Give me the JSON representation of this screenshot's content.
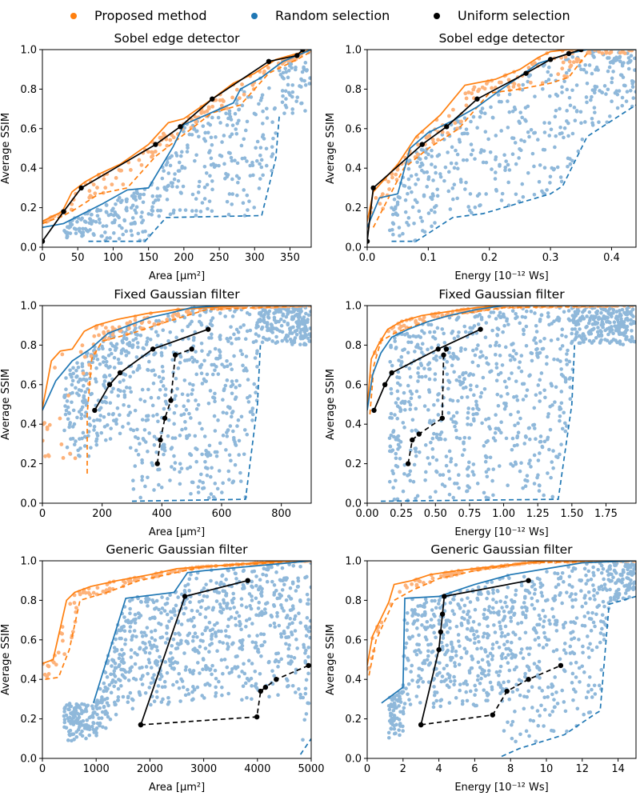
{
  "legend": {
    "items": [
      {
        "label": "Proposed method",
        "color": "#ff7f0e"
      },
      {
        "label": "Random selection",
        "color": "#1f77b4"
      },
      {
        "label": "Uniform selection",
        "color": "#000000"
      }
    ]
  },
  "colors": {
    "proposed": "#ff7f0e",
    "proposed_light": "#fdb27a",
    "random": "#1f77b4",
    "random_light": "#8fb8da",
    "uniform": "#000000"
  },
  "chart_data": [
    {
      "type": "scatter",
      "title": "Sobel edge detector",
      "xlabel": "Area [μm²]",
      "ylabel": "Average SSIM",
      "xlim": [
        0,
        380
      ],
      "ylim": [
        0,
        1.0
      ],
      "xticks": [
        0,
        50,
        100,
        150,
        200,
        250,
        300,
        350
      ],
      "yticks": [
        0.0,
        0.2,
        0.4,
        0.6,
        0.8,
        1.0
      ],
      "series": [
        {
          "name": "Proposed method",
          "role": "front",
          "x": [
            0,
            5,
            28,
            42,
            60,
            80,
            110,
            150,
            178,
            200,
            220,
            240,
            270,
            300,
            330,
            360,
            380
          ],
          "y": [
            0.13,
            0.14,
            0.18,
            0.28,
            0.33,
            0.37,
            0.42,
            0.52,
            0.63,
            0.65,
            0.7,
            0.75,
            0.83,
            0.88,
            0.95,
            0.98,
            1.0
          ]
        },
        {
          "name": "Proposed method",
          "role": "back",
          "x": [
            0,
            30,
            50,
            80,
            120,
            160,
            200,
            240,
            280,
            320,
            360,
            380
          ],
          "y": [
            0.12,
            0.16,
            0.2,
            0.27,
            0.3,
            0.46,
            0.57,
            0.68,
            0.72,
            0.88,
            0.95,
            0.99
          ]
        },
        {
          "name": "Random selection",
          "role": "front",
          "x": [
            0,
            30,
            85,
            120,
            150,
            185,
            200,
            270,
            280,
            310,
            340,
            380
          ],
          "y": [
            0.1,
            0.12,
            0.22,
            0.29,
            0.3,
            0.51,
            0.62,
            0.73,
            0.8,
            0.86,
            0.94,
            1.0
          ]
        },
        {
          "name": "Random selection",
          "role": "back",
          "x": [
            65,
            145,
            175,
            310,
            330,
            335
          ],
          "y": [
            0.03,
            0.03,
            0.15,
            0.16,
            0.45,
            0.67
          ]
        },
        {
          "name": "Uniform selection",
          "role": "path",
          "x": [
            0,
            30,
            55,
            160,
            195,
            240,
            320,
            360,
            368
          ],
          "y": [
            0.03,
            0.18,
            0.3,
            0.52,
            0.61,
            0.75,
            0.94,
            0.97,
            1.0
          ]
        }
      ]
    },
    {
      "type": "scatter",
      "title": "Sobel edge detector",
      "xlabel": "Energy [10⁻¹² Ws]",
      "ylabel": "Average SSIM",
      "xlim": [
        0,
        0.44
      ],
      "ylim": [
        0,
        1.0
      ],
      "xticks": [
        0.0,
        0.1,
        0.2,
        0.3,
        0.4
      ],
      "yticks": [
        0.0,
        0.2,
        0.4,
        0.6,
        0.8,
        1.0
      ],
      "series": [
        {
          "name": "Proposed method",
          "role": "front",
          "x": [
            0,
            0.01,
            0.05,
            0.08,
            0.12,
            0.16,
            0.21,
            0.25,
            0.28,
            0.3,
            0.33,
            0.44
          ],
          "y": [
            0.13,
            0.28,
            0.42,
            0.56,
            0.67,
            0.82,
            0.85,
            0.9,
            0.96,
            0.99,
            1.0,
            1.0
          ]
        },
        {
          "name": "Proposed method",
          "role": "back",
          "x": [
            0.01,
            0.06,
            0.1,
            0.15,
            0.2,
            0.25,
            0.3,
            0.33,
            0.36
          ],
          "y": [
            0.1,
            0.4,
            0.5,
            0.6,
            0.78,
            0.8,
            0.83,
            0.86,
            0.98
          ]
        },
        {
          "name": "Random selection",
          "role": "front",
          "x": [
            0,
            0.02,
            0.05,
            0.07,
            0.1,
            0.14,
            0.18,
            0.22,
            0.28,
            0.33,
            0.36,
            0.44
          ],
          "y": [
            0.1,
            0.25,
            0.27,
            0.5,
            0.58,
            0.64,
            0.71,
            0.8,
            0.93,
            0.98,
            1.0,
            1.0
          ]
        },
        {
          "name": "Random selection",
          "role": "back",
          "x": [
            0.04,
            0.08,
            0.14,
            0.19,
            0.3,
            0.32,
            0.36,
            0.44
          ],
          "y": [
            0.03,
            0.03,
            0.15,
            0.17,
            0.27,
            0.31,
            0.56,
            0.72
          ]
        },
        {
          "name": "Uniform selection",
          "role": "path",
          "x": [
            0,
            0.01,
            0.09,
            0.13,
            0.18,
            0.26,
            0.3,
            0.33,
            0.35
          ],
          "y": [
            0.03,
            0.3,
            0.52,
            0.61,
            0.75,
            0.88,
            0.95,
            0.98,
            1.0
          ]
        }
      ]
    },
    {
      "type": "scatter",
      "title": "Fixed Gaussian filter",
      "xlabel": "Area [μm²]",
      "ylabel": "Average SSIM",
      "xlim": [
        0,
        900
      ],
      "ylim": [
        0,
        1.0
      ],
      "xticks": [
        0,
        200,
        400,
        600,
        800
      ],
      "yticks": [
        0.0,
        0.2,
        0.4,
        0.6,
        0.8,
        1.0
      ],
      "series": [
        {
          "name": "Proposed method",
          "role": "front",
          "x": [
            0,
            30,
            60,
            100,
            140,
            180,
            250,
            350,
            450,
            560,
            680,
            900
          ],
          "y": [
            0.48,
            0.72,
            0.77,
            0.78,
            0.87,
            0.9,
            0.93,
            0.96,
            0.98,
            0.99,
            1.0,
            1.0
          ]
        },
        {
          "name": "Proposed method",
          "role": "back",
          "x": [
            150,
            150,
            165,
            200,
            300,
            400,
            550,
            900
          ],
          "y": [
            0.15,
            0.45,
            0.73,
            0.82,
            0.86,
            0.91,
            0.98,
            1.0
          ]
        },
        {
          "name": "Random selection",
          "role": "front",
          "x": [
            0,
            45,
            100,
            160,
            220,
            290,
            360,
            420,
            500,
            600,
            900
          ],
          "y": [
            0.47,
            0.62,
            0.72,
            0.78,
            0.86,
            0.9,
            0.94,
            0.96,
            0.99,
            1.0,
            1.0
          ]
        },
        {
          "name": "Random selection",
          "role": "back",
          "x": [
            300,
            680,
            720,
            730
          ],
          "y": [
            0.01,
            0.02,
            0.5,
            0.8
          ]
        },
        {
          "name": "Uniform selection",
          "role": "path",
          "x": [
            175,
            225,
            260,
            370,
            555
          ],
          "y": [
            0.47,
            0.6,
            0.66,
            0.78,
            0.88
          ]
        },
        {
          "name": "Uniform selection",
          "role": "back-path",
          "x": [
            385,
            395,
            410,
            430,
            445,
            500
          ],
          "y": [
            0.2,
            0.32,
            0.43,
            0.52,
            0.75,
            0.78
          ]
        }
      ]
    },
    {
      "type": "scatter",
      "title": "Fixed Gaussian filter",
      "xlabel": "Energy [10⁻¹² Ws]",
      "ylabel": "Average SSIM",
      "xlim": [
        0,
        1.97
      ],
      "ylim": [
        0,
        1.0
      ],
      "xticks": [
        0.0,
        0.25,
        0.5,
        0.75,
        1.0,
        1.25,
        1.5,
        1.75
      ],
      "yticks": [
        0.0,
        0.2,
        0.4,
        0.6,
        0.8,
        1.0
      ],
      "series": [
        {
          "name": "Proposed method",
          "role": "front",
          "x": [
            0,
            0.03,
            0.08,
            0.15,
            0.25,
            0.4,
            0.6,
            0.8,
            1.0,
            1.97
          ],
          "y": [
            0.48,
            0.73,
            0.8,
            0.88,
            0.92,
            0.95,
            0.97,
            0.99,
            1.0,
            1.0
          ]
        },
        {
          "name": "Proposed method",
          "role": "back",
          "x": [
            0.02,
            0.05,
            0.1,
            0.2,
            0.35,
            0.6,
            1.0,
            1.97
          ],
          "y": [
            0.45,
            0.7,
            0.82,
            0.86,
            0.9,
            0.95,
            0.99,
            1.0
          ]
        },
        {
          "name": "Random selection",
          "role": "front",
          "x": [
            0,
            0.04,
            0.1,
            0.18,
            0.3,
            0.45,
            0.6,
            0.8,
            1.0,
            1.97
          ],
          "y": [
            0.47,
            0.65,
            0.76,
            0.84,
            0.88,
            0.92,
            0.95,
            0.98,
            1.0,
            1.0
          ]
        },
        {
          "name": "Random selection",
          "role": "back",
          "x": [
            0.1,
            1.4,
            1.5,
            1.52
          ],
          "y": [
            0.01,
            0.02,
            0.5,
            0.8
          ]
        },
        {
          "name": "Uniform selection",
          "role": "path",
          "x": [
            0.05,
            0.13,
            0.18,
            0.52,
            0.83
          ],
          "y": [
            0.47,
            0.6,
            0.66,
            0.78,
            0.88
          ]
        },
        {
          "name": "Uniform selection",
          "role": "back-path",
          "x": [
            0.3,
            0.33,
            0.38,
            0.55,
            0.56,
            0.58
          ],
          "y": [
            0.2,
            0.32,
            0.35,
            0.43,
            0.75,
            0.78
          ]
        }
      ]
    },
    {
      "type": "scatter",
      "title": "Generic Gaussian filter",
      "xlabel": "Area [μm²]",
      "ylabel": "Average SSIM",
      "xlim": [
        0,
        5000
      ],
      "ylim": [
        0,
        1.0
      ],
      "xticks": [
        0,
        1000,
        2000,
        3000,
        4000,
        5000
      ],
      "yticks": [
        0.0,
        0.2,
        0.4,
        0.6,
        0.8,
        1.0
      ],
      "series": [
        {
          "name": "Proposed method",
          "role": "front",
          "x": [
            0,
            200,
            450,
            600,
            900,
            1400,
            2000,
            2500,
            3500,
            4500,
            5000
          ],
          "y": [
            0.48,
            0.5,
            0.8,
            0.84,
            0.87,
            0.9,
            0.93,
            0.96,
            0.98,
            1.0,
            1.0
          ]
        },
        {
          "name": "Proposed method",
          "role": "back",
          "x": [
            50,
            300,
            500,
            700,
            1200,
            1800,
            3000,
            5000
          ],
          "y": [
            0.4,
            0.41,
            0.55,
            0.8,
            0.84,
            0.9,
            0.97,
            1.0
          ]
        },
        {
          "name": "Random selection",
          "role": "front",
          "x": [
            950,
            1550,
            2450,
            2700,
            3000,
            3800,
            4600,
            5000
          ],
          "y": [
            0.28,
            0.81,
            0.84,
            0.94,
            0.95,
            0.97,
            0.99,
            1.0
          ]
        },
        {
          "name": "Random selection",
          "role": "back",
          "x": [
            4800,
            5000
          ],
          "y": [
            0.02,
            0.1
          ]
        },
        {
          "name": "Uniform selection",
          "role": "path",
          "x": [
            1830,
            2650,
            3820
          ],
          "y": [
            0.17,
            0.82,
            0.9
          ]
        },
        {
          "name": "Uniform selection",
          "role": "back-path",
          "x": [
            1830,
            3990,
            4060,
            4150,
            4350,
            4950
          ],
          "y": [
            0.17,
            0.21,
            0.34,
            0.36,
            0.4,
            0.47
          ]
        }
      ]
    },
    {
      "type": "scatter",
      "title": "Generic Gaussian filter",
      "xlabel": "Energy [10⁻¹² Ws]",
      "ylabel": "Average SSIM",
      "xlim": [
        0,
        15
      ],
      "ylim": [
        0,
        1.0
      ],
      "xticks": [
        0,
        2,
        4,
        6,
        8,
        10,
        12,
        14
      ],
      "yticks": [
        0.0,
        0.2,
        0.4,
        0.6,
        0.8,
        1.0
      ],
      "series": [
        {
          "name": "Proposed method",
          "role": "front",
          "x": [
            0,
            0.3,
            1.2,
            1.5,
            2.5,
            3.5,
            5.0,
            7.0,
            10.0,
            15.0
          ],
          "y": [
            0.47,
            0.62,
            0.79,
            0.88,
            0.9,
            0.93,
            0.95,
            0.97,
            1.0,
            1.0
          ]
        },
        {
          "name": "Proposed method",
          "role": "back",
          "x": [
            0.1,
            0.5,
            1.5,
            2.5,
            4.0,
            6.0,
            9.0,
            15.0
          ],
          "y": [
            0.42,
            0.6,
            0.8,
            0.85,
            0.91,
            0.95,
            0.99,
            1.0
          ]
        },
        {
          "name": "Random selection",
          "role": "front",
          "x": [
            0.8,
            2.0,
            2.1,
            4.0,
            6.0,
            8.0,
            10.0,
            12.0,
            15.0
          ],
          "y": [
            0.28,
            0.36,
            0.81,
            0.82,
            0.88,
            0.93,
            0.96,
            0.99,
            1.0
          ]
        },
        {
          "name": "Random selection",
          "role": "back",
          "x": [
            7.5,
            8.5,
            11.0,
            12.8,
            13.0,
            13.5,
            15.0
          ],
          "y": [
            0.01,
            0.05,
            0.12,
            0.23,
            0.24,
            0.78,
            0.82
          ]
        },
        {
          "name": "Uniform selection",
          "role": "path",
          "x": [
            3.0,
            4.0,
            4.1,
            4.2,
            4.3,
            9.0
          ],
          "y": [
            0.17,
            0.55,
            0.64,
            0.73,
            0.82,
            0.9
          ]
        },
        {
          "name": "Uniform selection",
          "role": "back-path",
          "x": [
            3.0,
            7.0,
            7.8,
            9.0,
            10.8
          ],
          "y": [
            0.17,
            0.22,
            0.34,
            0.4,
            0.47
          ]
        }
      ]
    }
  ]
}
